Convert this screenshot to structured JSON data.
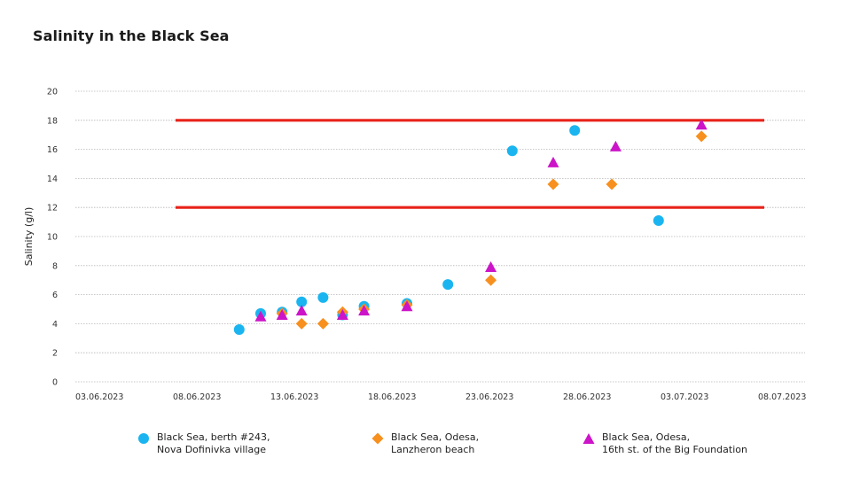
{
  "chart_data": {
    "type": "scatter",
    "title": "Salinity in the Black Sea",
    "xlabel": "",
    "ylabel": "Salinity (g/l)",
    "ylim": [
      0,
      20
    ],
    "yticks": [
      "0",
      "2",
      "4",
      "6",
      "8",
      "10",
      "12",
      "14",
      "16",
      "18",
      "20"
    ],
    "xlim_days_from_start": [
      0,
      35
    ],
    "xticks": [
      "03.06.2023",
      "08.06.2023",
      "13.06.2023",
      "18.06.2023",
      "23.06.2023",
      "28.06.2023",
      "03.07.2023",
      "08.07.2023"
    ],
    "x_unit": "days since 03.06.2023",
    "grid": true,
    "legend_position": "bottom",
    "reference_lines": [
      {
        "y": 18,
        "x_from": 5,
        "x_to": 35,
        "color": "#e8231a"
      },
      {
        "y": 12,
        "x_from": 5,
        "x_to": 35,
        "color": "#e8231a"
      }
    ],
    "series": [
      {
        "name": "Black Sea, berth #243, Nova Dofinivka village",
        "legend_lines": [
          "Black Sea, berth #243,",
          "Nova Dofinivka village"
        ],
        "marker": "circle",
        "color": "#1ab5f0",
        "points": [
          {
            "x": 8.4,
            "y": 3.6
          },
          {
            "x": 9.5,
            "y": 4.7
          },
          {
            "x": 10.6,
            "y": 4.8
          },
          {
            "x": 11.6,
            "y": 5.5
          },
          {
            "x": 12.7,
            "y": 5.8
          },
          {
            "x": 13.7,
            "y": 4.6
          },
          {
            "x": 14.8,
            "y": 5.2
          },
          {
            "x": 17.0,
            "y": 5.4
          },
          {
            "x": 19.1,
            "y": 6.7
          },
          {
            "x": 22.4,
            "y": 15.9
          },
          {
            "x": 25.6,
            "y": 17.3
          },
          {
            "x": 29.9,
            "y": 11.1
          }
        ]
      },
      {
        "name": "Black Sea, Odesa, Lanzheron beach",
        "legend_lines": [
          "Black Sea, Odesa,",
          "Lanzheron beach"
        ],
        "marker": "diamond",
        "color": "#f7901e",
        "points": [
          {
            "x": 10.6,
            "y": 4.7
          },
          {
            "x": 11.6,
            "y": 4.0
          },
          {
            "x": 12.7,
            "y": 4.0
          },
          {
            "x": 13.7,
            "y": 4.8
          },
          {
            "x": 14.8,
            "y": 5.0
          },
          {
            "x": 17.0,
            "y": 5.3
          },
          {
            "x": 21.3,
            "y": 7.0
          },
          {
            "x": 24.5,
            "y": 13.6
          },
          {
            "x": 27.5,
            "y": 13.6
          },
          {
            "x": 32.1,
            "y": 16.9
          }
        ]
      },
      {
        "name": "Black Sea, Odesa, 16th st. of the Big Foundation",
        "legend_lines": [
          "Black Sea, Odesa,",
          "16th st. of the Big Foundation"
        ],
        "marker": "triangle",
        "color": "#cc14c8",
        "points": [
          {
            "x": 9.5,
            "y": 4.5
          },
          {
            "x": 10.6,
            "y": 4.6
          },
          {
            "x": 11.6,
            "y": 4.9
          },
          {
            "x": 13.7,
            "y": 4.6
          },
          {
            "x": 14.8,
            "y": 4.9
          },
          {
            "x": 17.0,
            "y": 5.2
          },
          {
            "x": 21.3,
            "y": 7.9
          },
          {
            "x": 24.5,
            "y": 15.1
          },
          {
            "x": 27.7,
            "y": 16.2
          },
          {
            "x": 32.1,
            "y": 17.7
          }
        ]
      }
    ]
  }
}
